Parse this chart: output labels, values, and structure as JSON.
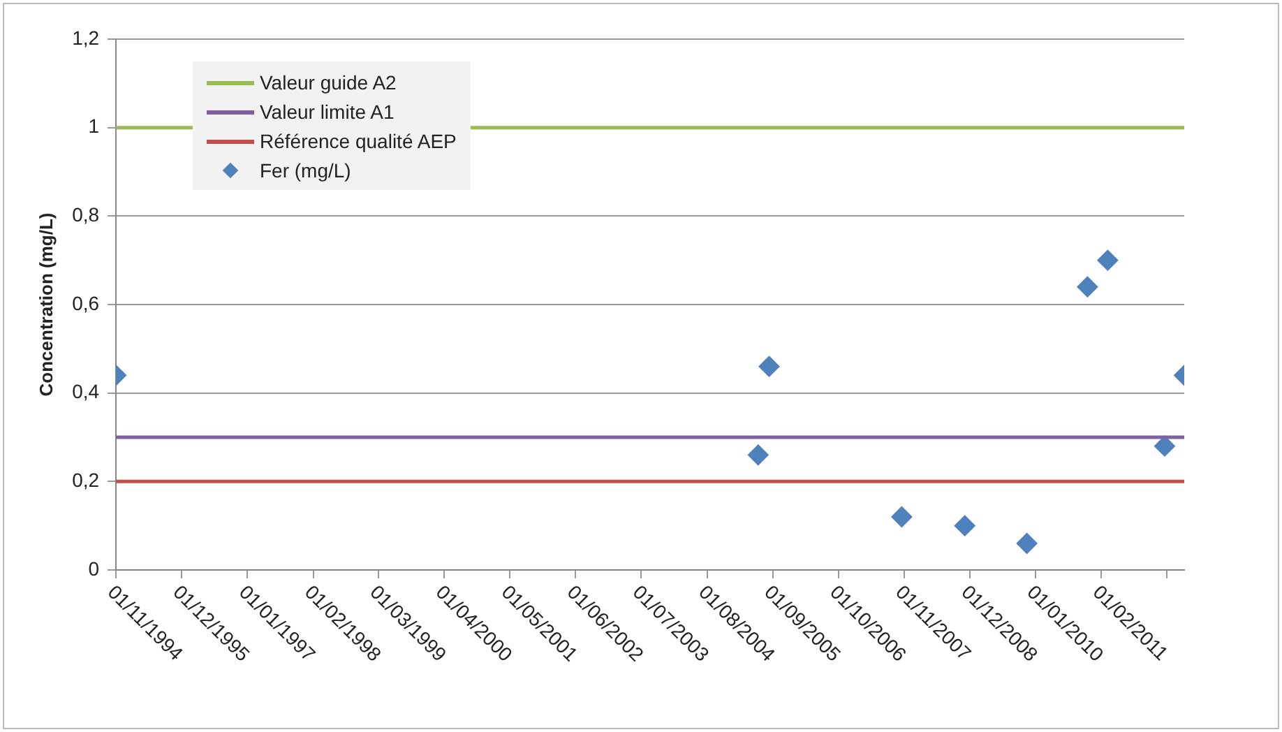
{
  "chart_data": {
    "type": "scatter",
    "ylabel": "Concentration (mg/L)",
    "x": [
      "1994-11-01",
      "2005-06-05",
      "2005-08-10",
      "2007-10-18",
      "2008-11-01",
      "2009-11-10",
      "2010-11-10",
      "2011-03-12",
      "2012-02-18",
      "2012-06-15"
    ],
    "series": [
      {
        "name": "Fer (mg/L)",
        "color": "#4f81bd",
        "values": [
          0.44,
          0.26,
          0.46,
          0.12,
          0.1,
          0.06,
          0.64,
          0.7,
          0.28,
          0.44
        ]
      }
    ],
    "ref_lines": [
      {
        "axis": "y",
        "value": 1,
        "label": "Valeur guide A2",
        "color": "#9bbb59"
      },
      {
        "axis": "y",
        "value": 0.3,
        "label": "Valeur limite A1",
        "color": "#7d60a0"
      },
      {
        "axis": "y",
        "value": 0.2,
        "label": "Référence qualité AEP",
        "color": "#c0504d"
      }
    ],
    "xlim": [
      "1994-11-01",
      "2012-06-15"
    ],
    "xticks": [
      {
        "value": "1994-11-01",
        "label": "01/11/1994"
      },
      {
        "value": "1995-12-01",
        "label": "01/12/1995"
      },
      {
        "value": "1997-01-01",
        "label": "01/01/1997"
      },
      {
        "value": "1998-02-01",
        "label": "01/02/1998"
      },
      {
        "value": "1999-03-01",
        "label": "01/03/1999"
      },
      {
        "value": "2000-04-01",
        "label": "01/04/2000"
      },
      {
        "value": "2001-05-01",
        "label": "01/05/2001"
      },
      {
        "value": "2002-06-01",
        "label": "01/06/2002"
      },
      {
        "value": "2003-07-01",
        "label": "01/07/2003"
      },
      {
        "value": "2004-08-01",
        "label": "01/08/2004"
      },
      {
        "value": "2005-09-01",
        "label": "01/09/2005"
      },
      {
        "value": "2006-10-01",
        "label": "01/10/2006"
      },
      {
        "value": "2007-11-01",
        "label": "01/11/2007"
      },
      {
        "value": "2008-12-01",
        "label": "01/12/2008"
      },
      {
        "value": "2010-01-01",
        "label": "01/01/2010"
      },
      {
        "value": "2011-02-01",
        "label": "01/02/2011"
      },
      {
        "value": "2012-03-01",
        "label": null
      }
    ],
    "ylim": [
      0,
      1.2
    ],
    "yticks": [
      0,
      {
        "value": 0.2,
        "label": "0,2"
      },
      {
        "value": 0.4,
        "label": "0,4"
      },
      {
        "value": 0.6,
        "label": "0,6"
      },
      {
        "value": 0.8,
        "label": "0,8"
      },
      1,
      {
        "value": 1.2,
        "label": "1,2"
      }
    ],
    "grid": "y",
    "legend": "top left",
    "marker": "diamond"
  }
}
